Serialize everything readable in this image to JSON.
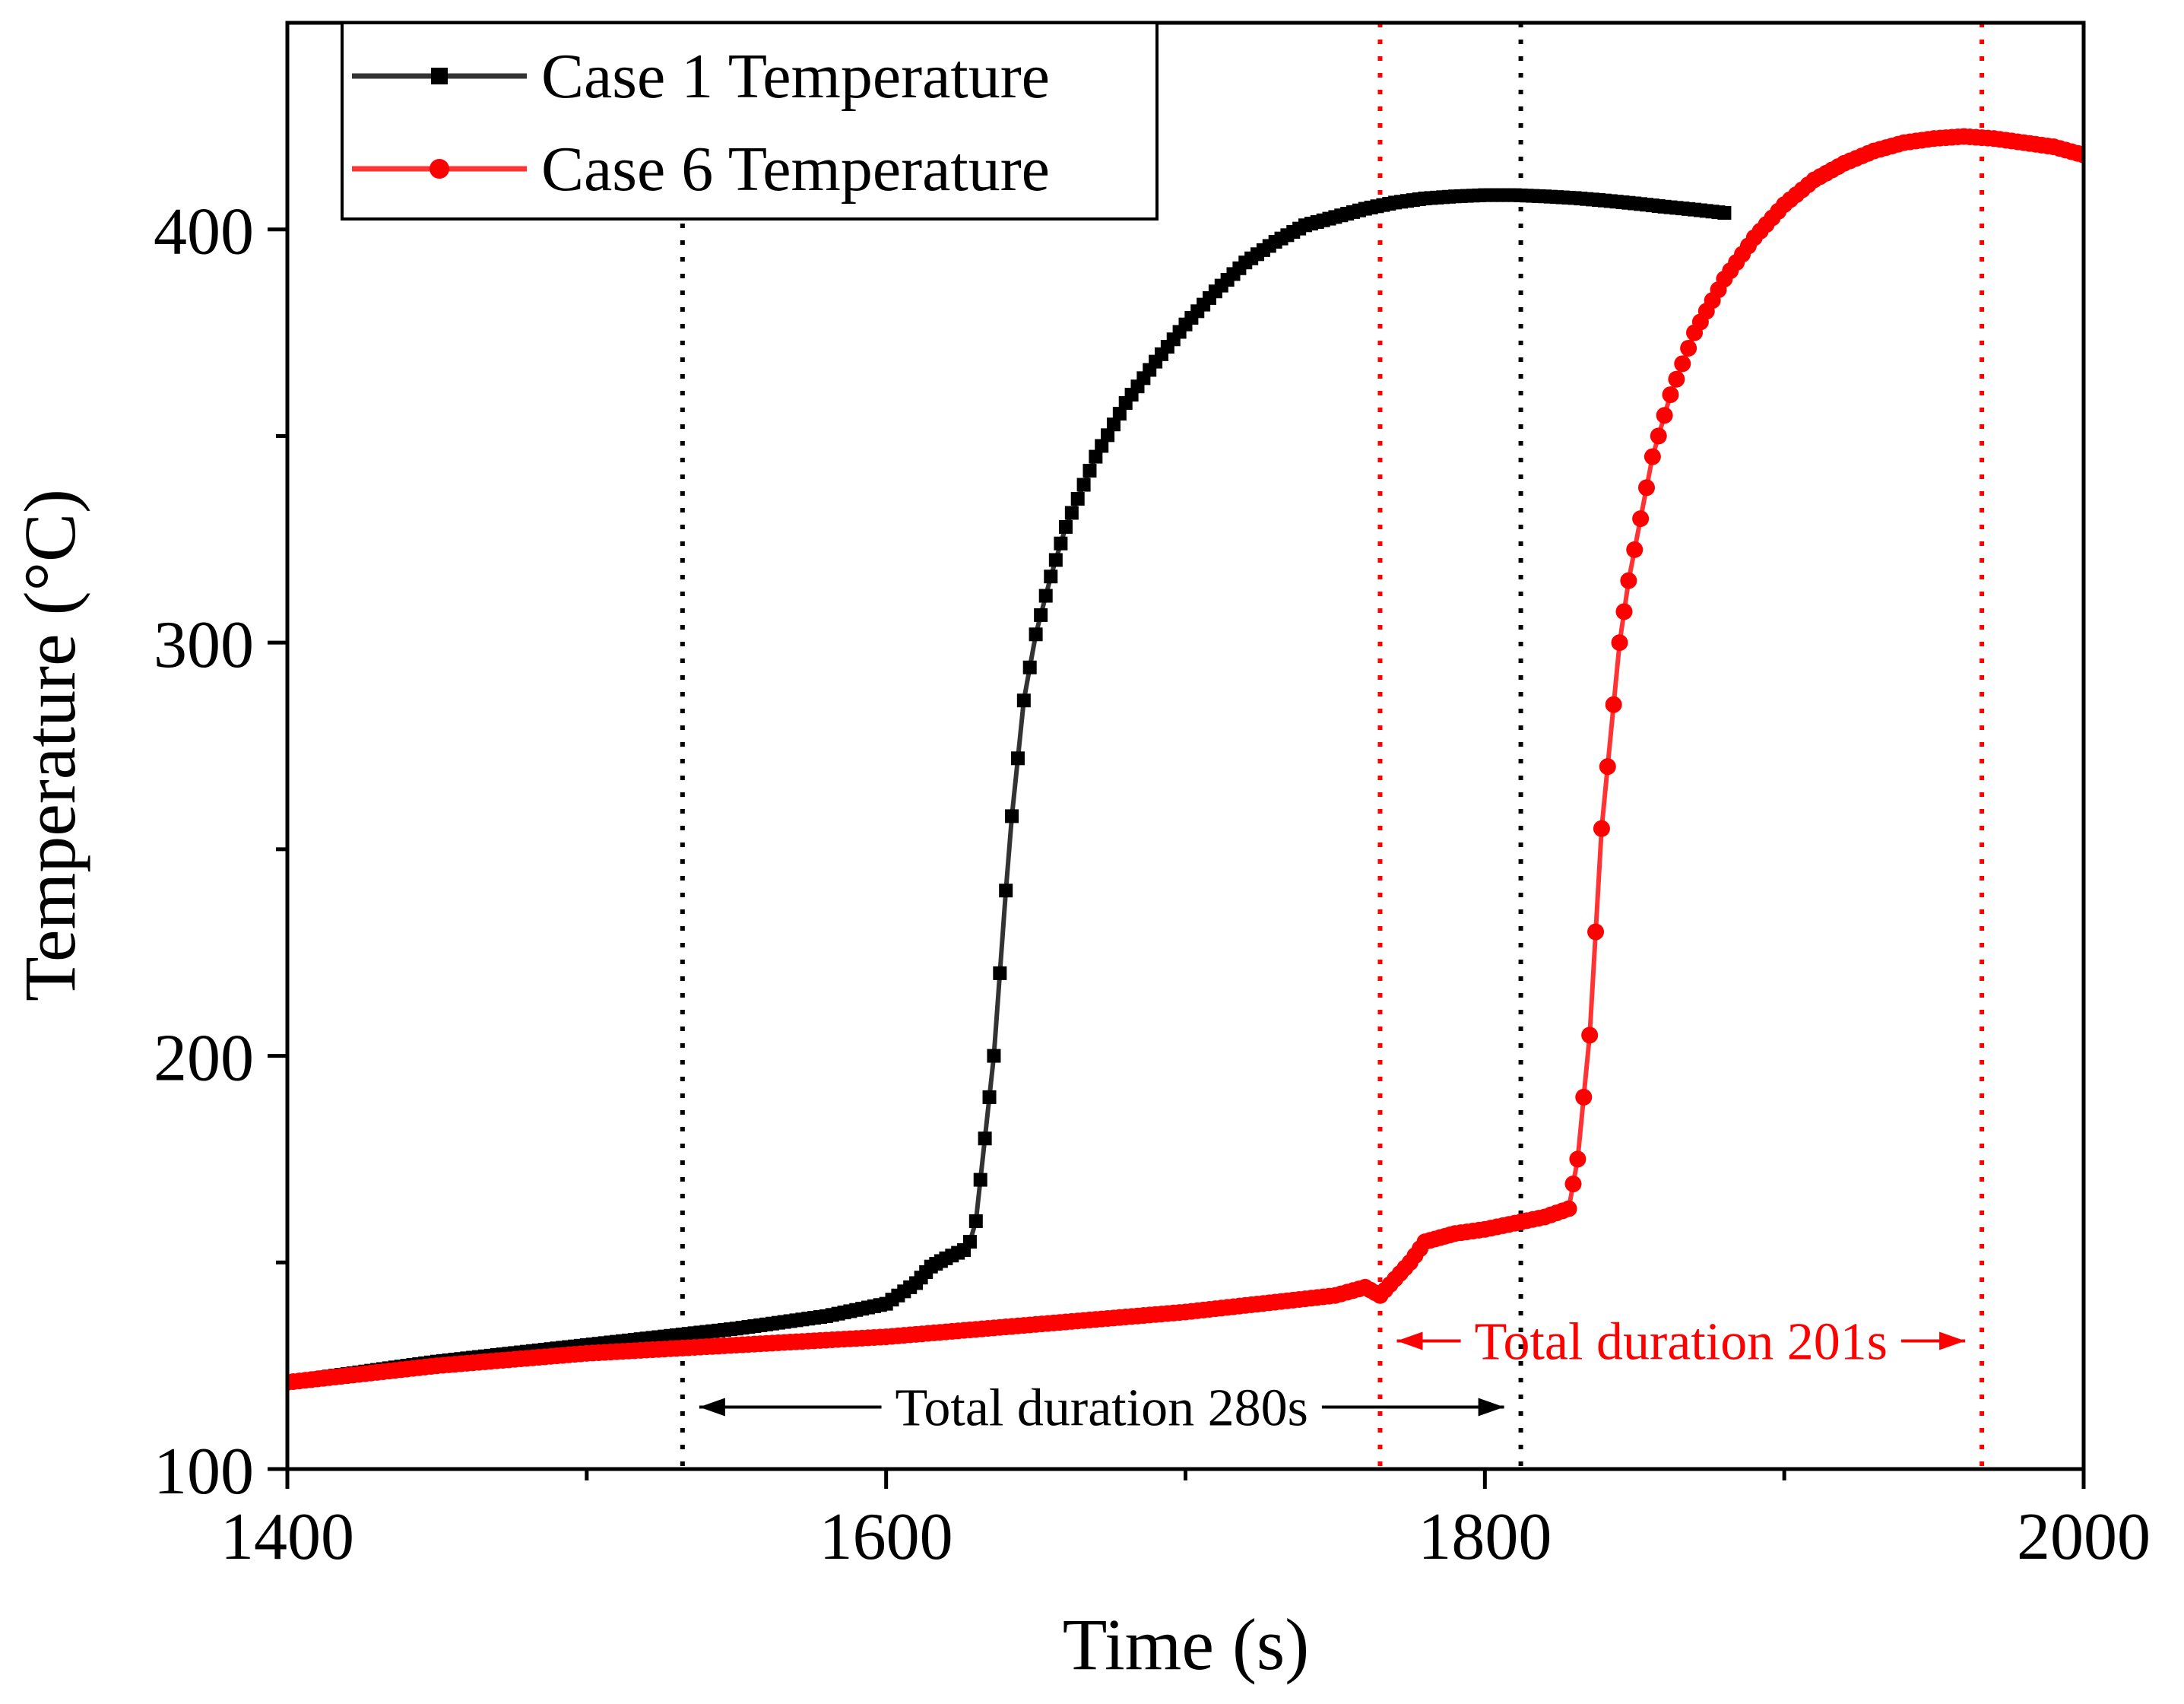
{
  "chart_data": {
    "type": "line",
    "xlabel": "Time (s)",
    "ylabel": "Temperature (°C)",
    "xlim": [
      1400,
      2000
    ],
    "ylim": [
      100,
      450
    ],
    "x_ticks": [
      1400,
      1600,
      1800,
      2000
    ],
    "x_tick_labels": [
      "1400",
      "1600",
      "1800",
      "2000"
    ],
    "x_minor_ticks": [
      1500,
      1700,
      1900
    ],
    "y_ticks": [
      100,
      200,
      300,
      400
    ],
    "y_tick_labels": [
      "100",
      "200",
      "300",
      "400"
    ],
    "y_minor_ticks": [
      150,
      250,
      350
    ],
    "grid": false,
    "legend_position": "top-left",
    "series": [
      {
        "name": "Case 1 Temperature",
        "color": "#000000",
        "marker": "square",
        "x": [
          1400,
          1450,
          1500,
          1550,
          1580,
          1600,
          1610,
          1615,
          1620,
          1626,
          1628,
          1630,
          1633,
          1636,
          1638,
          1640,
          1642,
          1644,
          1646,
          1650,
          1655,
          1660,
          1670,
          1680,
          1690,
          1700,
          1710,
          1720,
          1730,
          1740,
          1750,
          1760,
          1770,
          1780,
          1790,
          1800,
          1810,
          1820,
          1830,
          1840,
          1850,
          1860,
          1870,
          1880
        ],
        "y": [
          121,
          126,
          130,
          134,
          137,
          140,
          145,
          149,
          151,
          153,
          155,
          160,
          180,
          200,
          220,
          240,
          258,
          272,
          286,
          302,
          316,
          328,
          345,
          358,
          368,
          377,
          385,
          392,
          397,
          401,
          403,
          405,
          406.5,
          407.5,
          408,
          408.3,
          408.3,
          408,
          407.6,
          407,
          406.3,
          405.5,
          404.8,
          404
        ]
      },
      {
        "name": "Case 6 Temperature",
        "color": "#ff0000",
        "marker": "circle",
        "x": [
          1400,
          1450,
          1500,
          1550,
          1600,
          1650,
          1700,
          1750,
          1760,
          1765,
          1770,
          1775,
          1780,
          1785,
          1790,
          1800,
          1810,
          1820,
          1828,
          1831,
          1833,
          1835,
          1837,
          1839,
          1841,
          1843,
          1845,
          1848,
          1852,
          1856,
          1862,
          1870,
          1880,
          1890,
          1900,
          1910,
          1920,
          1930,
          1940,
          1950,
          1960,
          1970,
          1980,
          1990,
          2000
        ],
        "y": [
          121,
          125,
          128,
          130,
          132,
          135,
          138,
          142,
          144,
          142,
          146,
          150,
          155,
          156,
          157,
          158,
          159.5,
          161,
          163,
          175,
          190,
          205,
          230,
          255,
          270,
          285,
          300,
          315,
          330,
          345,
          360,
          375,
          388,
          398,
          406,
          412,
          416,
          419,
          421,
          422,
          422.5,
          422,
          421,
          420,
          418
        ]
      }
    ],
    "reference_lines": [
      {
        "x": 1532,
        "color": "#000000"
      },
      {
        "x": 1812,
        "color": "#000000"
      },
      {
        "x": 1765,
        "color": "#ff0000"
      },
      {
        "x": 1966,
        "color": "#ff0000"
      }
    ],
    "annotations": [
      {
        "text": "Total duration 280s",
        "color": "#000000",
        "x_from": 1532,
        "x_to": 1812,
        "y": 115
      },
      {
        "text": "Total duration 201s",
        "color": "#ff0000",
        "x_from": 1765,
        "x_to": 1966,
        "y": 131
      }
    ]
  }
}
